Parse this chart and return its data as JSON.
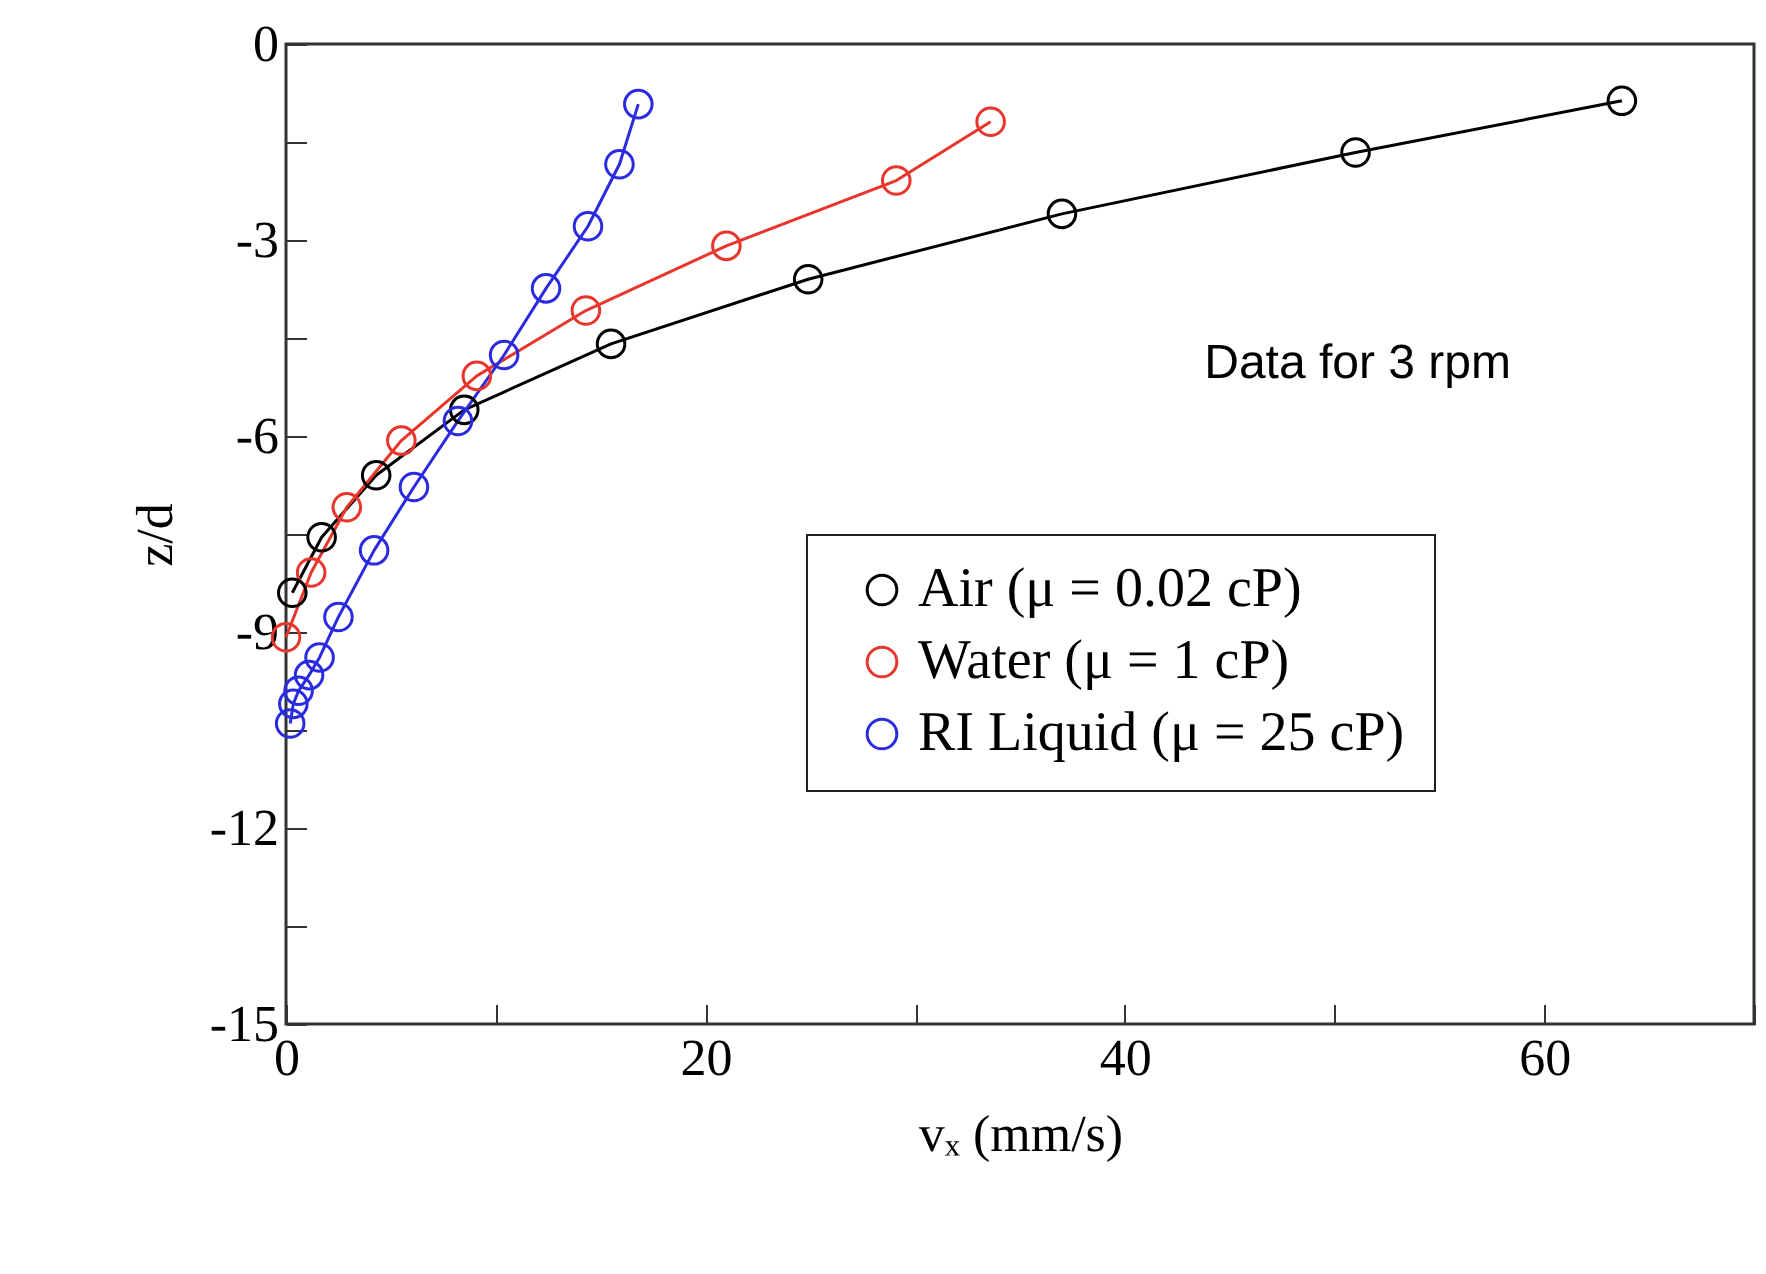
{
  "chart_data": {
    "type": "line",
    "xlabel": "vₓ (mm/s)",
    "ylabel": "z/d",
    "annotations": [
      "Data for 3  rpm"
    ],
    "xlim": [
      0,
      70
    ],
    "xticks": [
      0,
      {
        "value": 10,
        "label": null
      },
      20,
      {
        "value": 30,
        "label": null
      },
      40,
      {
        "value": 50,
        "label": null
      },
      60,
      {
        "value": 70,
        "label": null
      }
    ],
    "ylim": [
      -15,
      0
    ],
    "yticks": [
      -15,
      {
        "value": -13.5,
        "label": null
      },
      -12,
      {
        "value": -10.5,
        "label": null
      },
      -9,
      {
        "value": -7.5,
        "label": null
      },
      -6,
      {
        "value": -4.5,
        "label": null
      },
      -3,
      {
        "value": -1.5,
        "label": null
      },
      0
    ],
    "marker": "circle",
    "line_style": "solid",
    "legend": "bottom right",
    "grid": false,
    "series": [
      {
        "name": "Air (μ = 0.02 cP)",
        "color": "#000000",
        "x": [
          63.7,
          51.0,
          37.0,
          24.9,
          15.5,
          8.5,
          4.3,
          1.7,
          0.3
        ],
        "values": [
          -0.87,
          -1.66,
          -2.6,
          -3.6,
          -4.59,
          -5.6,
          -6.6,
          -7.55,
          -8.4
        ]
      },
      {
        "name": "Water (μ = 1 cP)",
        "color": "#e8362c",
        "x": [
          33.6,
          29.1,
          21.0,
          14.3,
          9.1,
          5.5,
          2.9,
          1.2,
          0.0
        ],
        "values": [
          -1.19,
          -2.09,
          -3.09,
          -4.08,
          -5.08,
          -6.07,
          -7.09,
          -8.09,
          -9.08
        ]
      },
      {
        "name": "RI Liquid (μ = 25 cP)",
        "color": "#2a2ae0",
        "x": [
          16.8,
          15.9,
          14.4,
          12.4,
          10.4,
          8.2,
          6.1,
          4.2,
          2.5,
          1.6,
          1.1,
          0.6,
          0.35,
          0.2
        ],
        "values": [
          -0.92,
          -1.84,
          -2.79,
          -3.74,
          -4.76,
          -5.77,
          -6.78,
          -7.75,
          -8.77,
          -9.39,
          -9.66,
          -9.9,
          -10.1,
          -10.4
        ]
      }
    ]
  }
}
